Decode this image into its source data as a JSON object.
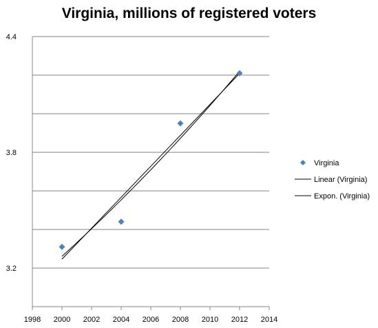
{
  "chart_data": {
    "type": "scatter",
    "title": "Virginia, millions of registered voters",
    "xlabel": "",
    "ylabel": "",
    "xlim": [
      1998,
      2014
    ],
    "ylim": [
      3.0,
      4.4
    ],
    "x_ticks": [
      1998,
      2000,
      2002,
      2004,
      2006,
      2008,
      2010,
      2012,
      2014
    ],
    "x_tick_labels": [
      "1998",
      "2000",
      "2002",
      "2004",
      "2006",
      "2008",
      "2010",
      "2012",
      "2014"
    ],
    "y_tick_labels": [
      {
        "value": 4.4,
        "label": "4.4"
      },
      {
        "value": 3.8,
        "label": "3.8"
      },
      {
        "value": 3.2,
        "label": "3.2"
      }
    ],
    "y_gridlines": [
      4.4,
      4.2,
      4.0,
      3.8,
      3.6,
      3.4,
      3.2
    ],
    "grid": true,
    "legend_position": "right",
    "series": [
      {
        "name": "Virginia",
        "kind": "scatter",
        "marker": "diamond",
        "color": "#4f81bd",
        "x": [
          2000,
          2004,
          2008,
          2012
        ],
        "y": [
          3.31,
          3.44,
          3.95,
          4.21
        ]
      }
    ],
    "trendlines": [
      {
        "name": "Linear (Virginia)",
        "kind": "linear",
        "color": "#000000"
      },
      {
        "name": "Expon. (Virginia)",
        "kind": "exponential",
        "color": "#000000"
      }
    ]
  }
}
